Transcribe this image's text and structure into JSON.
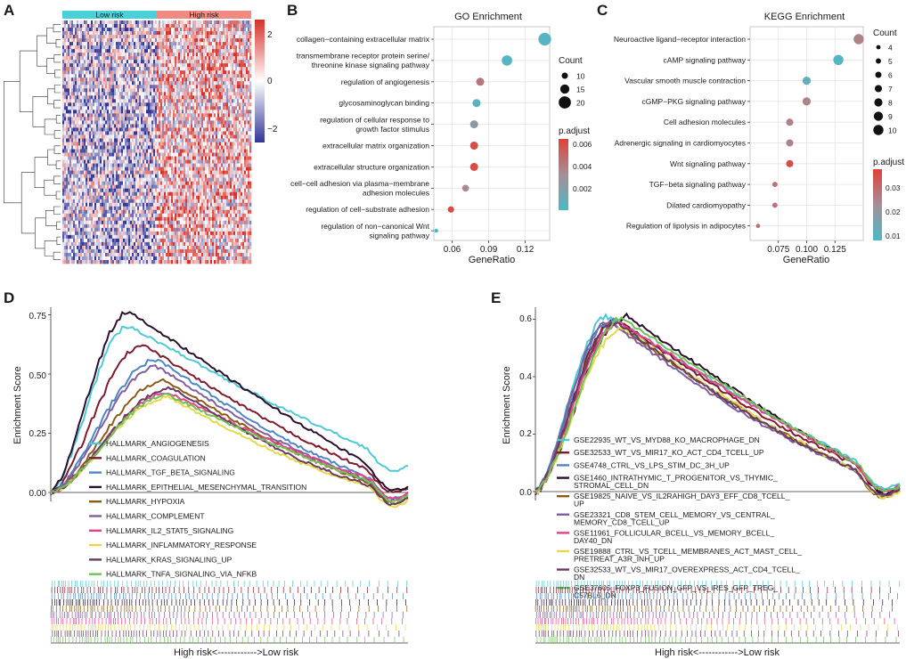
{
  "panels": {
    "A": {
      "label": "A",
      "groups": [
        "Low risk",
        "High risk"
      ],
      "colorbar_ticks": [
        "2",
        "0",
        "−2"
      ],
      "colors": {
        "high": "#d73027",
        "mid": "#ffffff",
        "low": "#313695",
        "group_low": "#48d1d8",
        "group_high": "#f08a82"
      }
    },
    "B": {
      "label": "B",
      "title": "GO Enrichment",
      "xlabel": "GeneRatio",
      "xticks": [
        "0.06",
        "0.09",
        "0.12"
      ],
      "size_legend_title": "Count",
      "size_legend": [
        "10",
        "15",
        "20"
      ],
      "color_legend_title": "p.adjust",
      "color_legend_ticks": [
        "0.006",
        "0.004",
        "0.002"
      ]
    },
    "C": {
      "label": "C",
      "title": "KEGG Enrichment",
      "xlabel": "GeneRatio",
      "xticks": [
        "0.075",
        "0.100",
        "0.125"
      ],
      "size_legend_title": "Count",
      "size_legend": [
        "4",
        "5",
        "6",
        "7",
        "8",
        "9",
        "10"
      ],
      "color_legend_title": "p.adjust",
      "color_legend_ticks": [
        "0.03",
        "0.02",
        "0.01"
      ]
    },
    "D": {
      "label": "D",
      "ylabel": "Enrichment Score",
      "yticks": [
        "0.75",
        "0.50",
        "0.25",
        "0.00"
      ],
      "footer": "High risk<------------>Low risk"
    },
    "E": {
      "label": "E",
      "ylabel": "Enrichment Score",
      "yticks": [
        "0.6",
        "0.4",
        "0.2",
        "0.0"
      ],
      "footer": "High risk<------------>Low risk"
    }
  },
  "chart_data": [
    {
      "type": "heatmap",
      "panel": "A",
      "groups": [
        "Low risk",
        "High risk"
      ],
      "color_range": [
        -2,
        2
      ],
      "colorbar_ticks": [
        2,
        0,
        -2
      ]
    },
    {
      "type": "scatter",
      "panel": "B",
      "title": "GO Enrichment",
      "xlabel": "GeneRatio",
      "xlim": [
        0.045,
        0.14
      ],
      "xticks": [
        0.06,
        0.09,
        0.12
      ],
      "terms": [
        {
          "lines": [
            "collagen−containing extracellular matrix"
          ],
          "ratio": 0.136,
          "count": 21,
          "padj": 0.0008
        },
        {
          "lines": [
            "transmembrane receptor protein serine/",
            "threonine kinase signaling pathway"
          ],
          "ratio": 0.105,
          "count": 17,
          "padj": 0.0009
        },
        {
          "lines": [
            "regulation of angiogenesis"
          ],
          "ratio": 0.083,
          "count": 13,
          "padj": 0.0046
        },
        {
          "lines": [
            "glycosaminoglycan binding"
          ],
          "ratio": 0.08,
          "count": 13,
          "padj": 0.0011
        },
        {
          "lines": [
            "regulation of cellular response to",
            "growth factor stimulus"
          ],
          "ratio": 0.078,
          "count": 13,
          "padj": 0.0028
        },
        {
          "lines": [
            "extracellular matrix organization"
          ],
          "ratio": 0.078,
          "count": 13,
          "padj": 0.0062
        },
        {
          "lines": [
            "extracellular structure organization"
          ],
          "ratio": 0.078,
          "count": 13,
          "padj": 0.0063
        },
        {
          "lines": [
            "cell−cell adhesion via plasma−membrane",
            "adhesion molecules"
          ],
          "ratio": 0.071,
          "count": 11,
          "padj": 0.0038
        },
        {
          "lines": [
            "regulation of cell−substrate adhesion"
          ],
          "ratio": 0.059,
          "count": 10,
          "padj": 0.0064
        },
        {
          "lines": [
            "regulation of non−canonical Wnt",
            "signaling pathway"
          ],
          "ratio": 0.047,
          "count": 6,
          "padj": 0.0007
        }
      ],
      "count_legend": [
        10,
        15,
        20
      ],
      "padj_range": [
        0.0005,
        0.0067
      ],
      "padj_ticks": [
        0.006,
        0.004,
        0.002
      ]
    },
    {
      "type": "scatter",
      "panel": "C",
      "title": "KEGG Enrichment",
      "xlabel": "GeneRatio",
      "xlim": [
        0.05,
        0.15
      ],
      "xticks": [
        0.075,
        0.1,
        0.125
      ],
      "terms": [
        {
          "lines": [
            "Neuroactive ligand−receptor interaction"
          ],
          "ratio": 0.146,
          "count": 10,
          "padj": 0.025
        },
        {
          "lines": [
            "cAMP signaling pathway"
          ],
          "ratio": 0.128,
          "count": 10,
          "padj": 0.01
        },
        {
          "lines": [
            "Vascular smooth muscle contraction"
          ],
          "ratio": 0.1,
          "count": 8,
          "padj": 0.012
        },
        {
          "lines": [
            "cGMP−PKG signaling pathway"
          ],
          "ratio": 0.1,
          "count": 8,
          "padj": 0.025
        },
        {
          "lines": [
            "Cell adhesion molecules"
          ],
          "ratio": 0.085,
          "count": 7,
          "padj": 0.025
        },
        {
          "lines": [
            "Adrenergic signaling in cardiomyocytes"
          ],
          "ratio": 0.085,
          "count": 7,
          "padj": 0.025
        },
        {
          "lines": [
            "Wnt signaling pathway"
          ],
          "ratio": 0.085,
          "count": 7,
          "padj": 0.035
        },
        {
          "lines": [
            "TGF−beta signaling pathway"
          ],
          "ratio": 0.072,
          "count": 5,
          "padj": 0.028
        },
        {
          "lines": [
            "Dilated cardiomyopathy"
          ],
          "ratio": 0.072,
          "count": 5,
          "padj": 0.028
        },
        {
          "lines": [
            "Regulation of lipolysis in adipocytes"
          ],
          "ratio": 0.057,
          "count": 4,
          "padj": 0.028
        }
      ],
      "count_legend": [
        4,
        5,
        6,
        7,
        8,
        9,
        10
      ],
      "padj_range": [
        0.0085,
        0.037
      ],
      "padj_ticks": [
        0.03,
        0.02,
        0.01
      ]
    },
    {
      "type": "line",
      "panel": "D",
      "ylabel": "Enrichment Score",
      "ylim": [
        -0.05,
        0.8
      ],
      "yticks": [
        0.0,
        0.25,
        0.5,
        0.75
      ],
      "xlabel": "High risk<------------>Low risk",
      "series": [
        {
          "name": "HALLMARK_ANGIOGENESIS",
          "color": "#4ec9d6",
          "peak": 0.7,
          "peak_at": 0.22,
          "end": 0.11
        },
        {
          "name": "HALLMARK_COAGULATION",
          "color": "#7e1a2c",
          "peak": 0.62,
          "peak_at": 0.26,
          "end": 0.02
        },
        {
          "name": "HALLMARK_TGF_BETA_SIGNALING",
          "color": "#4f86c6",
          "peak": 0.56,
          "peak_at": 0.3,
          "end": 0.0
        },
        {
          "name": "HALLMARK_EPITHELIAL_MESENCHYMAL_TRANSITION",
          "color": "#2b0f2e",
          "peak": 0.76,
          "peak_at": 0.22,
          "end": 0.02
        },
        {
          "name": "HALLMARK_HYPOXIA",
          "color": "#8c5a16",
          "peak": 0.47,
          "peak_at": 0.32,
          "end": -0.02
        },
        {
          "name": "HALLMARK_COMPLEMENT",
          "color": "#7f5f9e",
          "peak": 0.53,
          "peak_at": 0.3,
          "end": -0.01
        },
        {
          "name": "HALLMARK_IL2_STAT5_SIGNALING",
          "color": "#e8408a",
          "peak": 0.42,
          "peak_at": 0.33,
          "end": 0.0
        },
        {
          "name": "HALLMARK_INFLAMMATORY_RESPONSE",
          "color": "#e6d84a",
          "peak": 0.4,
          "peak_at": 0.33,
          "end": -0.03
        },
        {
          "name": "HALLMARK_KRAS_SIGNALING_UP",
          "color": "#6a3a62",
          "peak": 0.44,
          "peak_at": 0.34,
          "end": -0.02
        },
        {
          "name": "HALLMARK_TNFA_SIGNALING_VIA_NFKB",
          "color": "#6fc25a",
          "peak": 0.41,
          "peak_at": 0.33,
          "end": -0.01
        }
      ]
    },
    {
      "type": "line",
      "panel": "E",
      "ylabel": "Enrichment Score",
      "ylim": [
        -0.02,
        0.65
      ],
      "yticks": [
        0.0,
        0.2,
        0.4,
        0.6
      ],
      "xlabel": "High risk<------------>Low risk",
      "series": [
        {
          "name": "GSE22935_WT_VS_MYD88_KO_MACROPHAGE_DN",
          "color": "#4ec9d6",
          "peak": 0.61,
          "peak_at": 0.2,
          "end": 0.03
        },
        {
          "name": "GSE32533_WT_VS_MIR17_KO_ACT_CD4_TCELL_UP",
          "color": "#7e1a2c",
          "peak": 0.6,
          "peak_at": 0.22,
          "end": 0.02
        },
        {
          "name": "GSE4748_CTRL_VS_LPS_STIM_DC_3H_UP",
          "color": "#4f86c6",
          "peak": 0.6,
          "peak_at": 0.21,
          "end": 0.01
        },
        {
          "name": "GSE1460_INTRATHYMIC_T_PROGENITOR_VS_THYMIC_STROMAL_CELL_DN",
          "color": "#2b0f2e",
          "peak": 0.61,
          "peak_at": 0.25,
          "end": 0.01
        },
        {
          "name": "GSE19825_NAIVE_VS_IL2RAHIGH_DAY3_EFF_CD8_TCELL_UP",
          "color": "#8c5a16",
          "peak": 0.58,
          "peak_at": 0.22,
          "end": 0.0
        },
        {
          "name": "GSE23321_CD8_STEM_CELL_MEMORY_VS_CENTRAL_MEMORY_CD8_TCELL_UP",
          "color": "#7f5f9e",
          "peak": 0.59,
          "peak_at": 0.2,
          "end": 0.01
        },
        {
          "name": "GSE11961_FOLLICULAR_BCELL_VS_MEMORY_BCELL_DAY40_DN",
          "color": "#e8408a",
          "peak": 0.59,
          "peak_at": 0.23,
          "end": 0.02
        },
        {
          "name": "GSE19888_CTRL_VS_TCELL_MEMBRANES_ACT_MAST_CELL_PRETREAT_A3R_INH_UP",
          "color": "#e6d84a",
          "peak": 0.57,
          "peak_at": 0.24,
          "end": 0.0
        },
        {
          "name": "GSE32533_WT_VS_MIR17_OVEREXPRESS_ACT_CD4_TCELL_DN",
          "color": "#6a3a62",
          "peak": 0.59,
          "peak_at": 0.22,
          "end": 0.01
        },
        {
          "name": "GSE37605_FOXP3_FUSION_GFP_VS_IRES_GFP_TREG_C57BL6_DN",
          "color": "#6fc25a",
          "peak": 0.6,
          "peak_at": 0.24,
          "end": 0.02
        }
      ]
    }
  ]
}
